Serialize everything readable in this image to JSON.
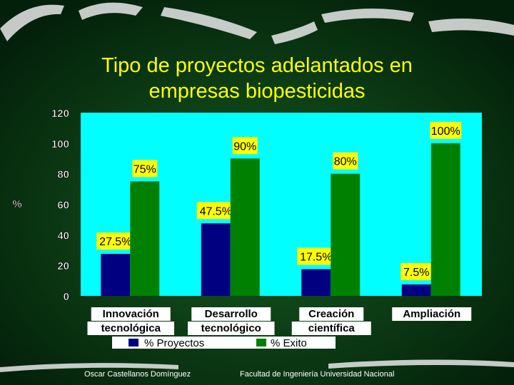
{
  "slide": {
    "title_line1": "Tipo de proyectos adelantados en",
    "title_line2": "empresas biopesticidas",
    "footer_left": "Oscar Castellanos Domínguez",
    "footer_right": "Facultad de Ingeniería Universidad Nacional"
  },
  "colors": {
    "background": "#0b3d12",
    "plot_bg": "#00ffff",
    "proyectos": "#000080",
    "exito": "#008000",
    "label_bg": "#ffff00",
    "title": "#ffff00"
  },
  "chart_data": {
    "type": "bar",
    "ylabel": "%",
    "ylim": [
      0,
      120
    ],
    "yticks": [
      0,
      20,
      40,
      60,
      80,
      100,
      120
    ],
    "categories": [
      [
        "Innovación",
        "tecnológica"
      ],
      [
        "Desarrollo",
        "tecnológico"
      ],
      [
        "Creación",
        "científica"
      ],
      [
        "Ampliación"
      ]
    ],
    "series": [
      {
        "name": "% Proyectos",
        "values": [
          27.5,
          47.5,
          17.5,
          7.5
        ],
        "labels": [
          "27.5%",
          "47.5%",
          "17.5%",
          "7.5%"
        ]
      },
      {
        "name": "% Exito",
        "values": [
          75,
          90,
          80,
          100
        ],
        "labels": [
          "75%",
          "90%",
          "80%",
          "100%"
        ]
      }
    ],
    "legend": "bottom",
    "grid": false
  }
}
